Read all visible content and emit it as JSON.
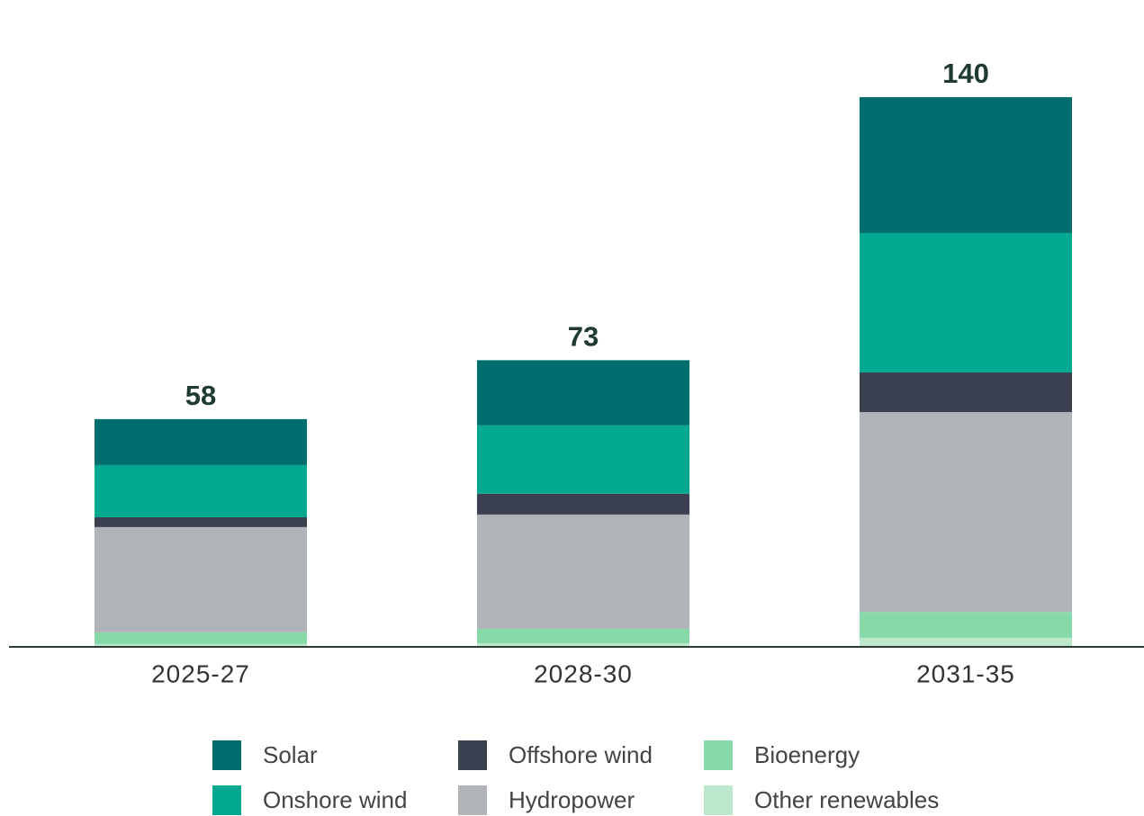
{
  "chart_data": {
    "type": "stacked_bar",
    "categories": [
      "2025-27",
      "2028-30",
      "2031-35"
    ],
    "totals": [
      58,
      73,
      140
    ],
    "series": [
      {
        "name": "Solar",
        "color": "#006e6e",
        "values": [
          11.7,
          16.6,
          34.6
        ]
      },
      {
        "name": "Onshore wind",
        "color": "#00a88f",
        "values": [
          13.3,
          17.4,
          35.5
        ]
      },
      {
        "name": "Offshore wind",
        "color": "#3b4150",
        "values": [
          2.5,
          5.3,
          10.1
        ]
      },
      {
        "name": "Hydropower",
        "color": "#b0b4b8",
        "values": [
          26.8,
          29.1,
          50.9
        ]
      },
      {
        "name": "Bioenergy",
        "color": "#88d9aa",
        "values": [
          3.0,
          3.7,
          6.6
        ]
      },
      {
        "name": "Other renewables",
        "color": "#bde8cc",
        "values": [
          0.7,
          0.9,
          2.3
        ]
      }
    ]
  }
}
